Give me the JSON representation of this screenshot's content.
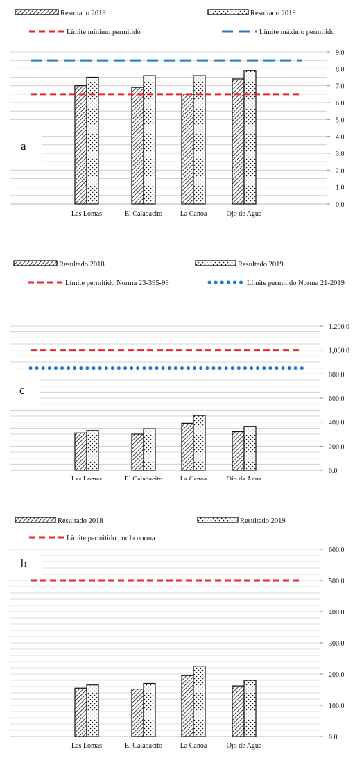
{
  "chart_data": [
    {
      "type": "bar",
      "panel_label": "a",
      "categories": [
        "Las Lomas",
        "El Calabacito",
        "La Canoa",
        "Ojo de Agua"
      ],
      "series": [
        {
          "name": "Resultado 2018",
          "values": [
            7.0,
            6.9,
            6.5,
            7.4
          ],
          "pattern": "hatch"
        },
        {
          "name": "Resultado 2019",
          "values": [
            7.5,
            7.6,
            7.6,
            7.9
          ],
          "pattern": "dots"
        }
      ],
      "reference_lines": [
        {
          "name": "Límite mínimo permitido",
          "value": 6.5,
          "color": "#e8262b",
          "style": "dash"
        },
        {
          "name": "Límite máximo permitido",
          "value": 8.5,
          "color": "#2a7ac0",
          "style": "longdash"
        }
      ],
      "yticks": [
        "0.0",
        "1.0",
        "2.0",
        "3.0",
        "4.0",
        "5.0",
        "6.0",
        "7.0",
        "8.0",
        "9.0"
      ],
      "ylim": [
        0,
        9
      ],
      "grid": true,
      "legend_position": "top"
    },
    {
      "type": "bar",
      "panel_label": "c",
      "categories": [
        "Las Lomas",
        "El Calabacito",
        "La Canoa",
        "Ojo de Agua"
      ],
      "series": [
        {
          "name": "Resultado 2018",
          "values": [
            310,
            300,
            390,
            320
          ],
          "pattern": "hatch"
        },
        {
          "name": "Resultado 2019",
          "values": [
            330,
            345,
            455,
            365
          ],
          "pattern": "dots"
        }
      ],
      "reference_lines": [
        {
          "name": "Límite permitido Norma 23-395-99",
          "value": 1000,
          "color": "#e8262b",
          "style": "dash"
        },
        {
          "name": "Límite permitido Norma 21-2019",
          "value": 850,
          "color": "#1f78c8",
          "style": "dots"
        }
      ],
      "yticks": [
        "0.0",
        "200.0",
        "400.0",
        "600.0",
        "800.0",
        "1,000.0",
        "1,200.0"
      ],
      "ylim": [
        0,
        1200
      ],
      "grid": true,
      "legend_position": "top"
    },
    {
      "type": "bar",
      "panel_label": "b",
      "categories": [
        "Las Lomas",
        "El Calabacito",
        "La Canoa",
        "Ojo de Agua"
      ],
      "series": [
        {
          "name": "Resultado 2018",
          "values": [
            155,
            152,
            195,
            162
          ],
          "pattern": "hatch"
        },
        {
          "name": "Resultado 2019",
          "values": [
            165,
            170,
            225,
            180
          ],
          "pattern": "dots"
        }
      ],
      "reference_lines": [
        {
          "name": "Límite permitido por la norma",
          "value": 500,
          "color": "#e8262b",
          "style": "dash"
        }
      ],
      "yticks": [
        "0.0",
        "100.0",
        "200.0",
        "300.0",
        "400.0",
        "500.0",
        "600.0"
      ],
      "ylim": [
        0,
        600
      ],
      "grid": true,
      "legend_position": "top"
    }
  ]
}
